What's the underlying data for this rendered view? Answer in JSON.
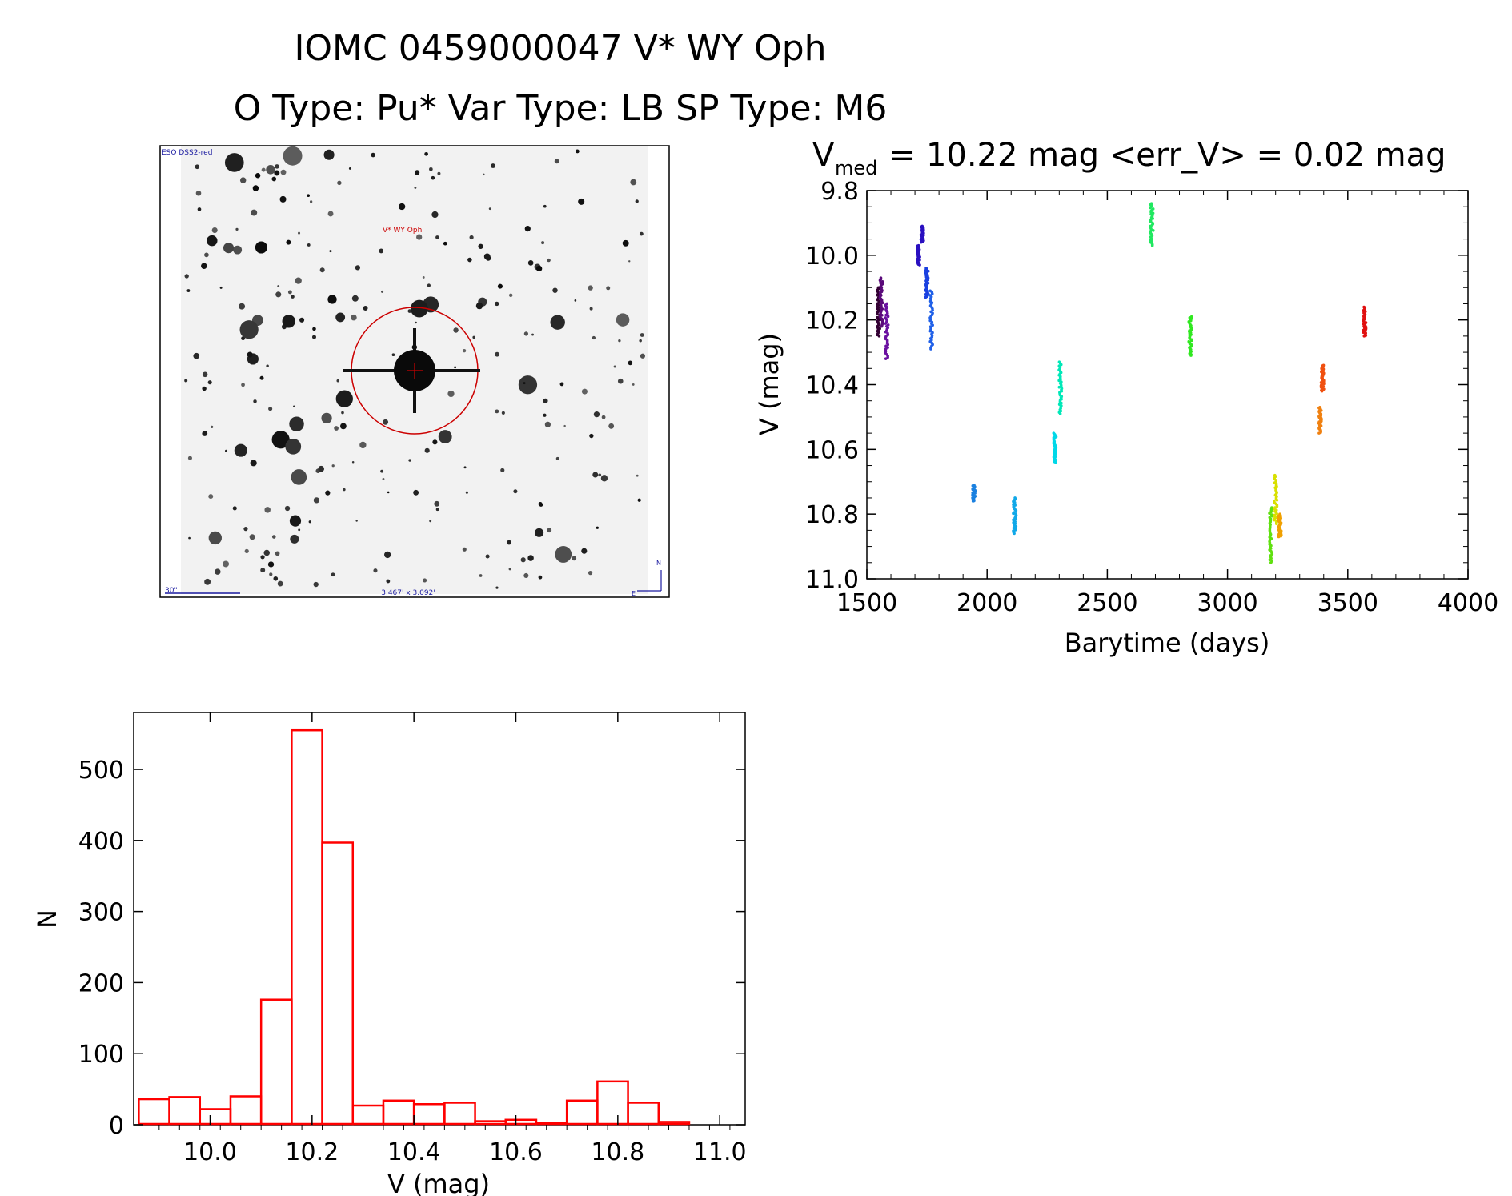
{
  "header": {
    "title": "IOMC 0459000047    V* WY Oph",
    "subtitle": "O Type: Pu*   Var Type: LB   SP Type: M6"
  },
  "finder": {
    "survey_label": "ESO DSS2-red",
    "target_label": "V* WY Oph",
    "scale_label": "30\"",
    "fov_label": "3.467' x 3.092'",
    "north_label": "N",
    "east_label": "E"
  },
  "colors": {
    "histogram": "#ff0000",
    "circle": "#cc0000",
    "annotation": "#1a1aa0"
  },
  "chart_data": [
    {
      "type": "scatter",
      "title_main": "V",
      "title_sub": "med",
      "title_rest": " = 10.22 mag <err_V> = 0.02 mag",
      "xlabel": "Barytime (days)",
      "ylabel": "V (mag)",
      "xlim": [
        1500,
        4000
      ],
      "ylim": [
        11.0,
        9.8
      ],
      "x_ticks": [
        "1500",
        "2000",
        "2500",
        "3000",
        "3500",
        "4000"
      ],
      "y_ticks": [
        "9.8",
        "10.0",
        "10.2",
        "10.4",
        "10.6",
        "10.8",
        "11.0"
      ],
      "series": [
        {
          "name": "s1",
          "color": "#330033",
          "x": 1548,
          "y_range": [
            10.1,
            10.25
          ]
        },
        {
          "name": "s2",
          "color": "#5a0a7a",
          "x": 1560,
          "y_range": [
            10.07,
            10.22
          ]
        },
        {
          "name": "s3",
          "color": "#6a10a0",
          "x": 1583,
          "y_range": [
            10.15,
            10.32
          ]
        },
        {
          "name": "s4",
          "color": "#2a10c0",
          "x": 1715,
          "y_range": [
            9.97,
            10.03
          ]
        },
        {
          "name": "s5",
          "color": "#2a10c0",
          "x": 1730,
          "y_range": [
            9.91,
            9.96
          ]
        },
        {
          "name": "s6",
          "color": "#1a40e0",
          "x": 1750,
          "y_range": [
            10.04,
            10.13
          ]
        },
        {
          "name": "s7",
          "color": "#2060e8",
          "x": 1768,
          "y_range": [
            10.11,
            10.29
          ]
        },
        {
          "name": "s8",
          "color": "#1a80e0",
          "x": 1945,
          "y_range": [
            10.71,
            10.76
          ]
        },
        {
          "name": "s9",
          "color": "#10a8e8",
          "x": 2115,
          "y_range": [
            10.75,
            10.86
          ]
        },
        {
          "name": "s10",
          "color": "#00d8e8",
          "x": 2282,
          "y_range": [
            10.55,
            10.64
          ]
        },
        {
          "name": "s11",
          "color": "#00e8b8",
          "x": 2305,
          "y_range": [
            10.33,
            10.49
          ]
        },
        {
          "name": "s12",
          "color": "#20e860",
          "x": 2685,
          "y_range": [
            9.84,
            9.97
          ]
        },
        {
          "name": "s13",
          "color": "#30e820",
          "x": 2845,
          "y_range": [
            10.19,
            10.31
          ]
        },
        {
          "name": "s14",
          "color": "#60e010",
          "x": 3180,
          "y_range": [
            10.78,
            10.95
          ]
        },
        {
          "name": "s15",
          "color": "#d8e000",
          "x": 3200,
          "y_range": [
            10.68,
            10.83
          ]
        },
        {
          "name": "s16",
          "color": "#f0a000",
          "x": 3218,
          "y_range": [
            10.8,
            10.87
          ]
        },
        {
          "name": "s17",
          "color": "#f08010",
          "x": 3385,
          "y_range": [
            10.47,
            10.55
          ]
        },
        {
          "name": "s18",
          "color": "#f05010",
          "x": 3395,
          "y_range": [
            10.34,
            10.42
          ]
        },
        {
          "name": "s19",
          "color": "#e01010",
          "x": 3570,
          "y_range": [
            10.16,
            10.25
          ]
        }
      ]
    },
    {
      "type": "bar",
      "xlabel": "V (mag)",
      "ylabel": "N",
      "xlim": [
        9.85,
        11.05
      ],
      "ylim": [
        0,
        580
      ],
      "x_ticks": [
        "10.0",
        "10.2",
        "10.4",
        "10.6",
        "10.8",
        "11.0"
      ],
      "y_ticks": [
        "0",
        "100",
        "200",
        "300",
        "400",
        "500"
      ],
      "bin_width": 0.06,
      "bin_starts": [
        9.86,
        9.92,
        9.98,
        10.04,
        10.1,
        10.16,
        10.22,
        10.28,
        10.34,
        10.4,
        10.46,
        10.52,
        10.58,
        10.64,
        10.7,
        10.76,
        10.82,
        10.88,
        10.94
      ],
      "values": [
        36,
        39,
        22,
        40,
        176,
        555,
        397,
        27,
        34,
        29,
        31,
        5,
        7,
        2,
        34,
        61,
        31,
        4,
        1
      ]
    }
  ]
}
